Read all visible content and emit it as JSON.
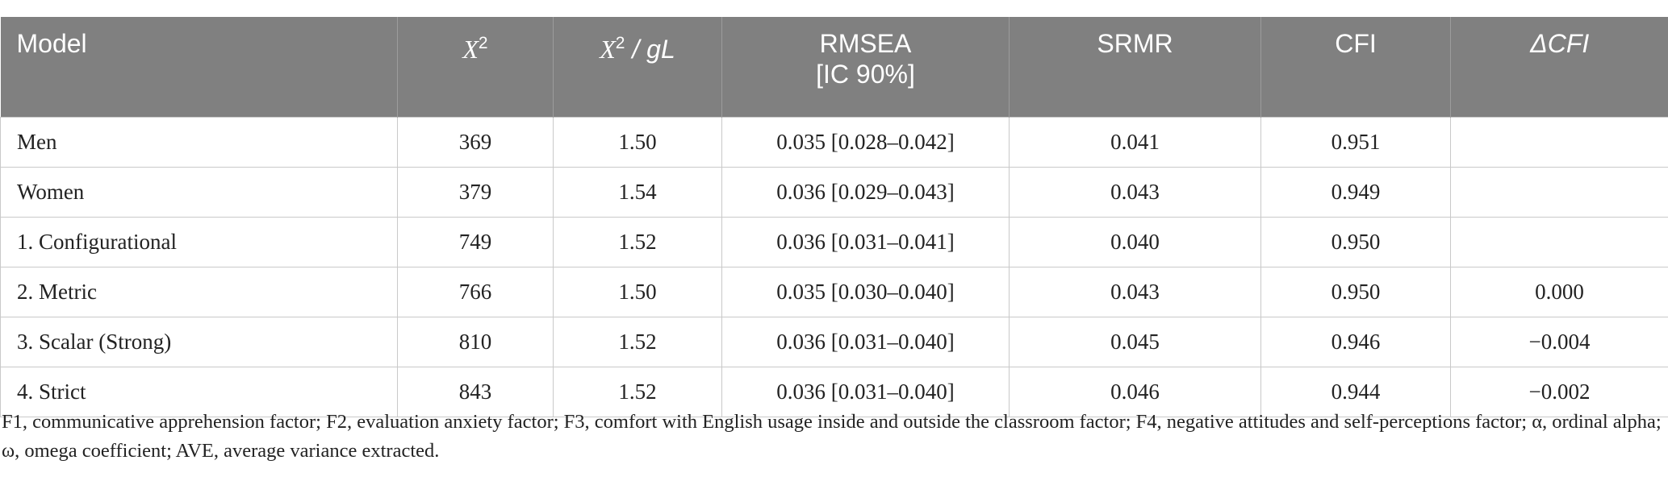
{
  "table": {
    "headers": {
      "model": "Model",
      "chi2_symbol": "X",
      "chi2_exp": "2",
      "chi2gl_symbol": "X",
      "chi2gl_exp": "2",
      "chi2gl_suffix": " / gL",
      "rmsea_line1": "RMSEA",
      "rmsea_line2": "[IC 90%]",
      "srmr": "SRMR",
      "cfi": "CFI",
      "dcfi": "ΔCFI"
    },
    "rows": [
      {
        "model": "Men",
        "chi2": "369",
        "chi2gl": "1.50",
        "rmsea": "0.035 [0.028–0.042]",
        "srmr": "0.041",
        "cfi": "0.951",
        "dcfi": ""
      },
      {
        "model": "Women",
        "chi2": "379",
        "chi2gl": "1.54",
        "rmsea": "0.036 [0.029–0.043]",
        "srmr": "0.043",
        "cfi": "0.949",
        "dcfi": ""
      },
      {
        "model": "1. Configurational",
        "chi2": "749",
        "chi2gl": "1.52",
        "rmsea": "0.036 [0.031–0.041]",
        "srmr": "0.040",
        "cfi": "0.950",
        "dcfi": ""
      },
      {
        "model": "2. Metric",
        "chi2": "766",
        "chi2gl": "1.50",
        "rmsea": "0.035 [0.030–0.040]",
        "srmr": "0.043",
        "cfi": "0.950",
        "dcfi": "0.000"
      },
      {
        "model": "3. Scalar (Strong)",
        "chi2": "810",
        "chi2gl": "1.52",
        "rmsea": "0.036 [0.031–0.040]",
        "srmr": "0.045",
        "cfi": "0.946",
        "dcfi": "−0.004"
      },
      {
        "model": "4. Strict",
        "chi2": "843",
        "chi2gl": "1.52",
        "rmsea": "0.036 [0.031–0.040]",
        "srmr": "0.046",
        "cfi": "0.944",
        "dcfi": "−0.002"
      }
    ]
  },
  "footnote": "F1, communicative apprehension factor; F2, evaluation anxiety factor; F3, comfort with English usage inside and outside the classroom factor; F4, negative attitudes and self-perceptions factor; α, ordinal alpha; ω, omega coefficient; AVE, average variance extracted."
}
